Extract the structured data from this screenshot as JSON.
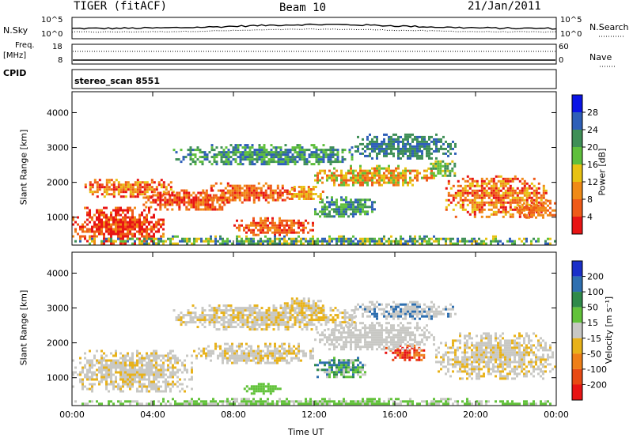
{
  "header": {
    "title": "TIGER (fitACF)",
    "beam": "Beam 10",
    "date": "21/Jan/2011"
  },
  "top_panels": {
    "nsky_label": "N.Sky",
    "nsearch_label": "N.Search",
    "left_scale_top": "10^5",
    "left_scale_bottom": "10^0",
    "right_scale_top": "10^5",
    "right_scale_bottom": "10^0",
    "freq_label_1": "Freq.",
    "freq_label_2": "[MHz]",
    "freq_ticks": [
      "18",
      "8"
    ],
    "nave_label": "Nave",
    "nave_ticks": [
      "60",
      "0"
    ],
    "cpid_label": "CPID",
    "cpid_value": "stereo_scan 8551"
  },
  "chart_data": [
    {
      "type": "heatmap",
      "name": "power-panel",
      "xlabel": "",
      "ylabel": "Slant Range [km]",
      "y_ticks": [
        "1000",
        "2000",
        "3000",
        "4000"
      ],
      "ylim": [
        200,
        4600
      ],
      "x_ticks": [
        "00:00",
        "04:00",
        "08:00",
        "12:00",
        "16:00",
        "20:00",
        "00:00"
      ],
      "xlim_hours": [
        0,
        24
      ],
      "colorbar": {
        "label": "Power [dB]",
        "ticks": [
          "4",
          "8",
          "12",
          "16",
          "20",
          "24",
          "28"
        ],
        "colors": [
          "#0a14e6",
          "#2e5fb8",
          "#3f8f57",
          "#5fbf3c",
          "#e8c212",
          "#f08a17",
          "#ef5a18",
          "#e81414"
        ]
      }
    },
    {
      "type": "heatmap",
      "name": "velocity-panel",
      "xlabel": "Time UT",
      "ylabel": "Slant Range [km]",
      "y_ticks": [
        "1000",
        "2000",
        "3000",
        "4000"
      ],
      "ylim": [
        200,
        4600
      ],
      "x_ticks": [
        "00:00",
        "04:00",
        "08:00",
        "12:00",
        "16:00",
        "20:00",
        "00:00"
      ],
      "xlim_hours": [
        0,
        24
      ],
      "colorbar": {
        "label": "Velocity [m s⁻¹]",
        "ticks": [
          "200",
          "100",
          "50",
          "15",
          "-15",
          "-50",
          "-100",
          "-200"
        ],
        "colors": [
          "#1a2fc9",
          "#2e6fb0",
          "#2f8a4a",
          "#62c23a",
          "#c8c8c4",
          "#e8b21a",
          "#ef7f18",
          "#e84a14",
          "#e81414"
        ]
      }
    }
  ]
}
